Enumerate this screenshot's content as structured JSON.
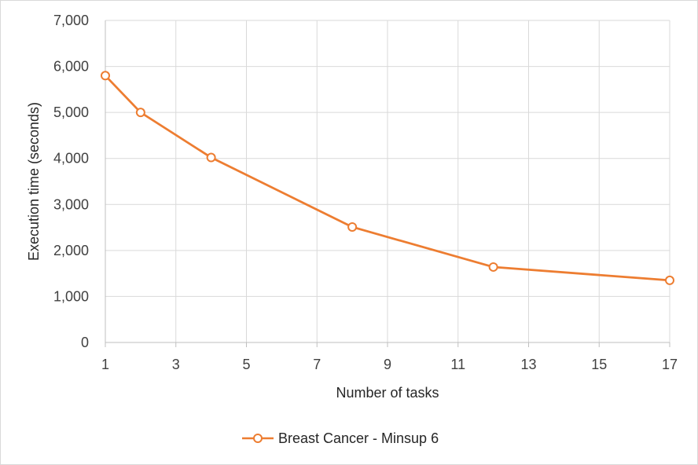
{
  "chart_data": {
    "type": "line",
    "xlabel": "Number of tasks",
    "ylabel": "Execution time (seconds)",
    "xlim": [
      1,
      17
    ],
    "ylim": [
      0,
      7000
    ],
    "x_ticks": [
      1,
      3,
      5,
      7,
      9,
      11,
      13,
      15,
      17
    ],
    "y_ticks": [
      0,
      1000,
      2000,
      3000,
      4000,
      5000,
      6000,
      7000
    ],
    "y_tick_labels": [
      "0",
      "1,000",
      "2,000",
      "3,000",
      "4,000",
      "5,000",
      "6,000",
      "7,000"
    ],
    "grid": true,
    "legend_position": "bottom",
    "series": [
      {
        "name": "Breast Cancer - Minsup 6",
        "color": "#ED7D31",
        "marker": "open-circle",
        "x": [
          1,
          2,
          4,
          8,
          12,
          17
        ],
        "y": [
          5800,
          5000,
          4020,
          2510,
          1640,
          1350
        ]
      }
    ]
  }
}
